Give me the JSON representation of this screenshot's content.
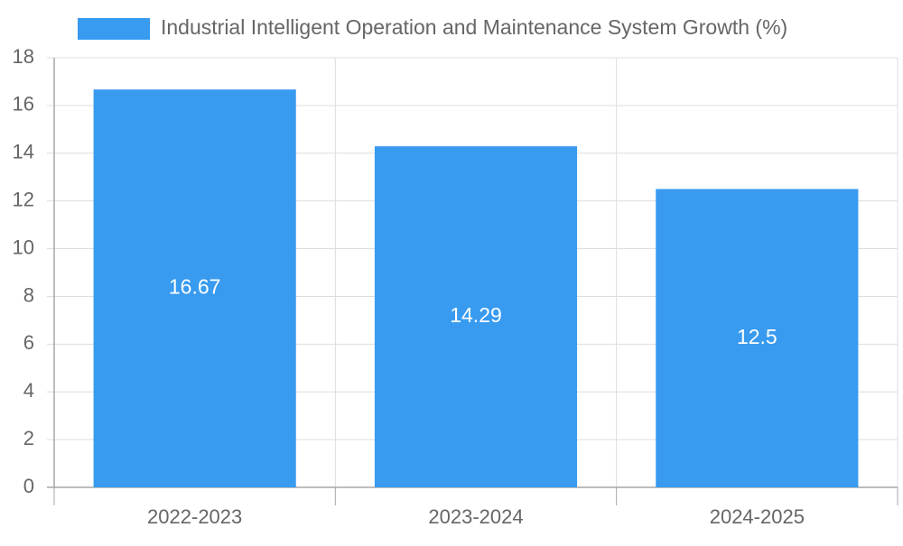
{
  "chart_data": {
    "type": "bar",
    "title": "",
    "xlabel": "",
    "ylabel": "",
    "categories": [
      "2022-2023",
      "2023-2024",
      "2024-2025"
    ],
    "series": [
      {
        "name": "Industrial Intelligent Operation and Maintenance System Growth (%)",
        "values": [
          16.67,
          14.29,
          12.5
        ],
        "value_labels": [
          "16.67",
          "14.29",
          "12.5"
        ]
      }
    ],
    "ylim": [
      0,
      18
    ],
    "yticks": [
      0,
      2,
      4,
      6,
      8,
      10,
      12,
      14,
      16,
      18
    ],
    "ytick_labels": [
      "0",
      "2",
      "4",
      "6",
      "8",
      "10",
      "12",
      "14",
      "16",
      "18"
    ],
    "grid": true,
    "legend_position": "top-center"
  },
  "colors": {
    "bar": "#389bf0",
    "grid": "#dddddd",
    "axis": "#a7a7a7",
    "tick_text": "#666666",
    "legend_text": "#666666",
    "value_text": "#ffffff",
    "background": "#ffffff"
  }
}
